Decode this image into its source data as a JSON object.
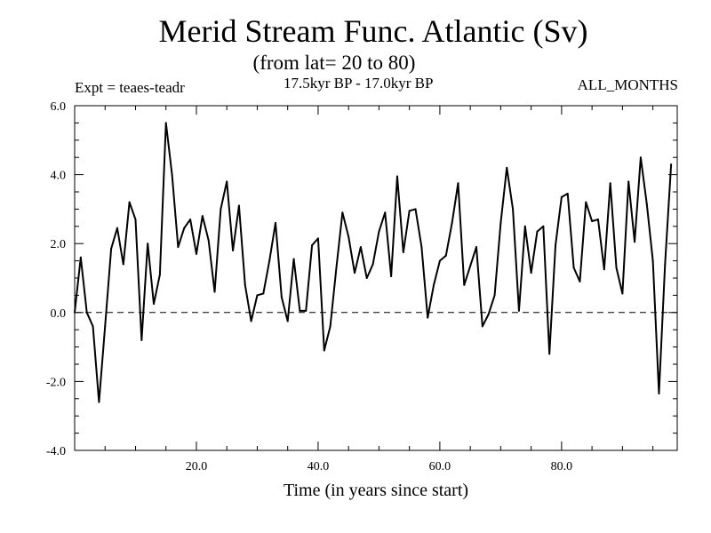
{
  "chart_data": {
    "type": "line",
    "title": "Merid Stream Func. Atlantic (Sv)",
    "subtitle": "(from lat= 20 to 80)",
    "experiment": "Expt = teaes-teadr",
    "period": "17.5kyr BP - 17.0kyr BP",
    "months": "ALL_MONTHS",
    "xlabel": "Time (in years since start)",
    "ylabel": "",
    "xlim": [
      0,
      99
    ],
    "ylim": [
      -4.0,
      6.0
    ],
    "xticks": [
      20,
      40,
      60,
      80
    ],
    "xtick_labels": [
      "20.0",
      "40.0",
      "60.0",
      "80.0"
    ],
    "yticks": [
      -4,
      -2,
      0,
      2,
      4,
      6
    ],
    "ytick_labels": [
      "-4.0",
      "-2.0",
      "0.0",
      "2.0",
      "4.0",
      "6.0"
    ],
    "reference_line": {
      "y": 0.0,
      "style": "dashed"
    },
    "series": [
      {
        "name": "Merid Stream Func.",
        "x_start": 0,
        "x_step": 1,
        "values": [
          0.0,
          1.6,
          0.0,
          -0.4,
          -2.6,
          -0.4,
          1.85,
          2.45,
          1.4,
          3.2,
          2.7,
          -0.8,
          2.0,
          0.25,
          1.1,
          5.5,
          4.0,
          1.9,
          2.45,
          2.7,
          1.7,
          2.8,
          2.1,
          0.6,
          3.0,
          3.8,
          1.8,
          3.1,
          0.8,
          -0.25,
          0.5,
          0.55,
          1.5,
          2.6,
          0.45,
          -0.25,
          1.55,
          0.05,
          0.05,
          1.95,
          2.15,
          -1.1,
          -0.4,
          1.3,
          2.9,
          2.2,
          1.15,
          1.9,
          1.0,
          1.4,
          2.35,
          2.9,
          1.05,
          3.95,
          1.75,
          2.95,
          3.0,
          1.9,
          -0.15,
          0.8,
          1.5,
          1.65,
          2.6,
          3.75,
          0.8,
          1.35,
          1.9,
          -0.4,
          -0.05,
          0.5,
          2.6,
          4.2,
          3.0,
          0.05,
          2.5,
          1.15,
          2.35,
          2.5,
          -1.2,
          1.95,
          3.35,
          3.45,
          1.3,
          0.9,
          3.2,
          2.65,
          2.7,
          1.25,
          3.75,
          1.3,
          0.55,
          3.8,
          2.05,
          4.5,
          3.15,
          1.5,
          -2.35,
          1.4,
          4.3
        ]
      }
    ]
  }
}
